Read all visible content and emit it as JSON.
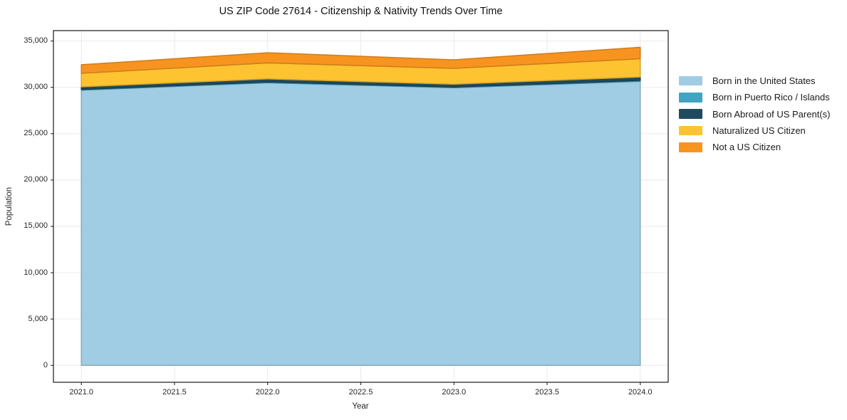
{
  "chart_data": {
    "type": "area",
    "stacked": true,
    "title": "US ZIP Code 27614 - Citizenship & Nativity Trends Over Time",
    "xlabel": "Year",
    "ylabel": "Population",
    "x": [
      2021,
      2022,
      2023,
      2024
    ],
    "series": [
      {
        "name": "Born in the United States",
        "color": "#a0cce4",
        "values": [
          29700,
          30500,
          29950,
          30650
        ]
      },
      {
        "name": "Born in Puerto Rico / Islands",
        "color": "#3fa5c3",
        "values": [
          80,
          80,
          80,
          100
        ]
      },
      {
        "name": "Born Abroad of US Parent(s)",
        "color": "#1f4a5e",
        "values": [
          280,
          330,
          310,
          370
        ]
      },
      {
        "name": "Naturalized US Citizen",
        "color": "#fdc331",
        "values": [
          1460,
          1720,
          1710,
          1970
        ]
      },
      {
        "name": "Not a US Citizen",
        "color": "#f79420",
        "values": [
          920,
          1100,
          920,
          1230
        ]
      }
    ],
    "x_tick_labels": [
      "2021.0",
      "2021.5",
      "2022.0",
      "2022.5",
      "2023.0",
      "2023.5",
      "2024.0"
    ],
    "x_tick_values": [
      2021,
      2021.5,
      2022,
      2022.5,
      2023,
      2023.5,
      2024
    ],
    "y_tick_labels": [
      "0",
      "5,000",
      "10,000",
      "15,000",
      "20,000",
      "25,000",
      "30,000",
      "35,000"
    ],
    "y_tick_values": [
      0,
      5000,
      10000,
      15000,
      20000,
      25000,
      30000,
      35000
    ],
    "xlim": [
      2020.85,
      2024.15
    ],
    "ylim": [
      -1820,
      36120
    ],
    "grid": true,
    "legend_position": "right outside",
    "grid_color": "#eaeaea",
    "spine_color": "#2a2a2a",
    "background": "#ffffff"
  }
}
